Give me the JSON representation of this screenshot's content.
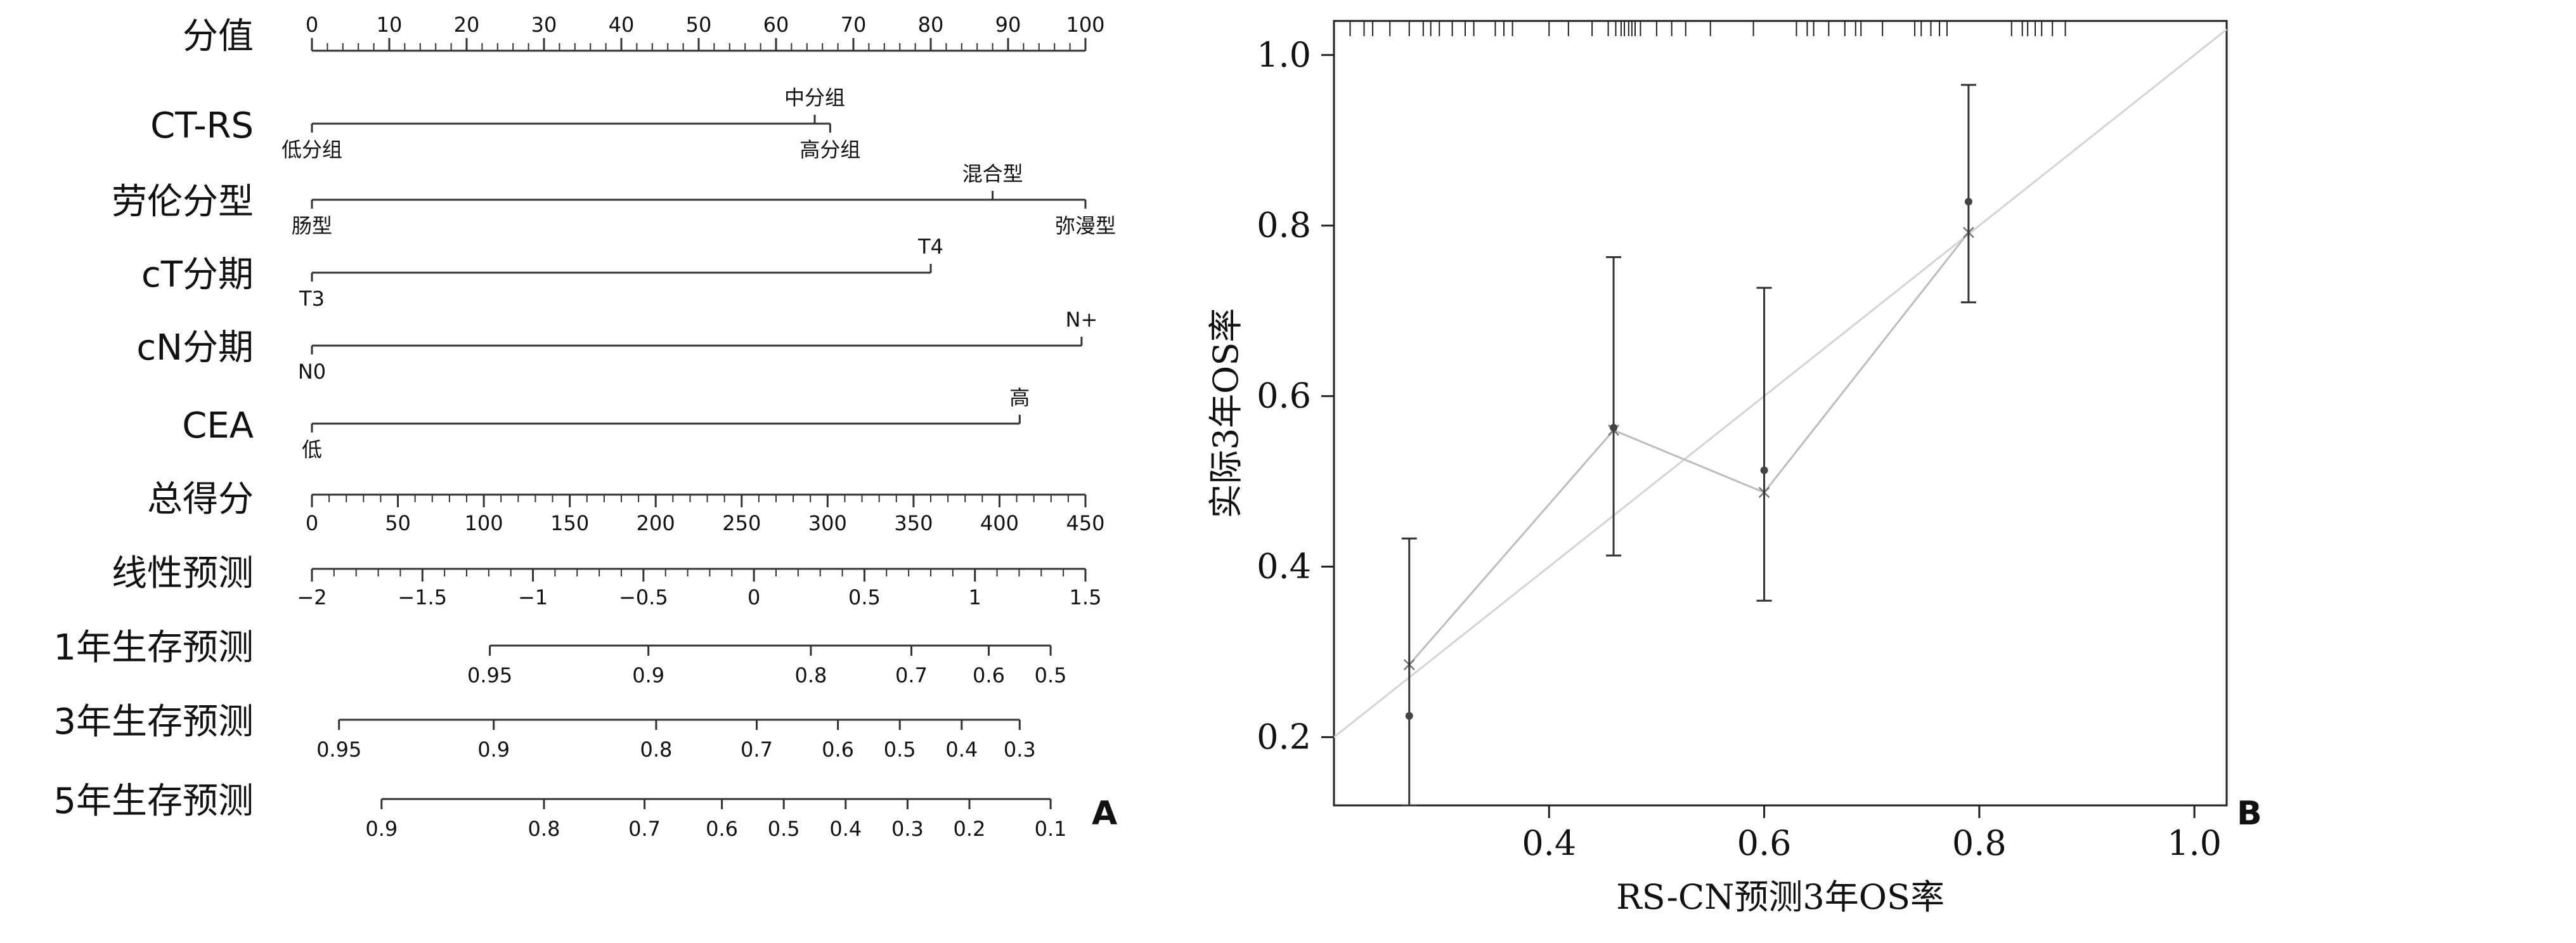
{
  "chart_data": [
    {
      "type": "nomogram",
      "panel_label": "A",
      "rows": [
        {
          "key": "points",
          "name": "分值",
          "kind": "axis",
          "ticks": [
            {
              "v": 0,
              "t": "0"
            },
            {
              "v": 10,
              "t": "10"
            },
            {
              "v": 20,
              "t": "20"
            },
            {
              "v": 30,
              "t": "30"
            },
            {
              "v": 40,
              "t": "40"
            },
            {
              "v": 50,
              "t": "50"
            },
            {
              "v": 60,
              "t": "60"
            },
            {
              "v": 70,
              "t": "70"
            },
            {
              "v": 80,
              "t": "80"
            },
            {
              "v": 90,
              "t": "90"
            },
            {
              "v": 100,
              "t": "100"
            }
          ],
          "minor_step": 2,
          "labels_above": true
        },
        {
          "key": "ctrs",
          "name": "CT-RS",
          "kind": "factor",
          "line_range": [
            0,
            67
          ],
          "levels": [
            {
              "label": "低分组",
              "points": 0,
              "pos": "below"
            },
            {
              "label": "中分组",
              "points": 65,
              "pos": "above"
            },
            {
              "label": "高分组",
              "points": 67,
              "pos": "below"
            }
          ]
        },
        {
          "key": "lauren",
          "name": "劳伦分型",
          "kind": "factor",
          "line_range": [
            0,
            100
          ],
          "levels": [
            {
              "label": "肠型",
              "points": 0,
              "pos": "below"
            },
            {
              "label": "混合型",
              "points": 88,
              "pos": "above"
            },
            {
              "label": "弥漫型",
              "points": 100,
              "pos": "below"
            }
          ]
        },
        {
          "key": "ct",
          "name": "cT分期",
          "kind": "factor",
          "line_range": [
            0,
            80
          ],
          "levels": [
            {
              "label": "T3",
              "points": 0,
              "pos": "below"
            },
            {
              "label": "T4",
              "points": 80,
              "pos": "above"
            }
          ]
        },
        {
          "key": "cn",
          "name": "cN分期",
          "kind": "factor",
          "line_range": [
            0,
            99.5
          ],
          "levels": [
            {
              "label": "N0",
              "points": 0,
              "pos": "below"
            },
            {
              "label": "N+",
              "points": 99.5,
              "pos": "above"
            }
          ]
        },
        {
          "key": "cea",
          "name": "CEA",
          "kind": "factor",
          "line_range": [
            0,
            91.5
          ],
          "levels": [
            {
              "label": "低",
              "points": 0,
              "pos": "below"
            },
            {
              "label": "高",
              "points": 91.5,
              "pos": "above"
            }
          ]
        },
        {
          "key": "total",
          "name": "总得分",
          "kind": "axis",
          "ticks": [
            {
              "v": 0,
              "t": "0"
            },
            {
              "v": 50,
              "t": "50"
            },
            {
              "v": 100,
              "t": "100"
            },
            {
              "v": 150,
              "t": "150"
            },
            {
              "v": 200,
              "t": "200"
            },
            {
              "v": 250,
              "t": "250"
            },
            {
              "v": 300,
              "t": "300"
            },
            {
              "v": 350,
              "t": "350"
            },
            {
              "v": 400,
              "t": "400"
            },
            {
              "v": 450,
              "t": "450"
            }
          ],
          "scale_max": 450,
          "minor_step": 10,
          "labels_above": false
        },
        {
          "key": "lp",
          "name": "线性预测",
          "kind": "axis",
          "ticks": [
            {
              "v": -2,
              "t": "−2"
            },
            {
              "v": -1.5,
              "t": "−1.5"
            },
            {
              "v": -1,
              "t": "−1"
            },
            {
              "v": -0.5,
              "t": "−0.5"
            },
            {
              "v": 0,
              "t": "0"
            },
            {
              "v": 0.5,
              "t": "0.5"
            },
            {
              "v": 1,
              "t": "1"
            },
            {
              "v": 1.5,
              "t": "1.5"
            }
          ],
          "scale_min": -2,
          "scale_max": 1.5,
          "minor_step": 0.1,
          "labels_above": false
        },
        {
          "key": "s1",
          "name": "1年生存预测",
          "kind": "prob",
          "ticks": [
            {
              "p": 23,
              "t": "0.95"
            },
            {
              "p": 43.5,
              "t": "0.9"
            },
            {
              "p": 64.5,
              "t": "0.8"
            },
            {
              "p": 77.5,
              "t": "0.7"
            },
            {
              "p": 87.5,
              "t": "0.6"
            },
            {
              "p": 95.5,
              "t": "0.5"
            }
          ]
        },
        {
          "key": "s3",
          "name": "3年生存预测",
          "kind": "prob",
          "ticks": [
            {
              "p": 3.5,
              "t": "0.95"
            },
            {
              "p": 23.5,
              "t": "0.9"
            },
            {
              "p": 44.5,
              "t": "0.8"
            },
            {
              "p": 57.5,
              "t": "0.7"
            },
            {
              "p": 68,
              "t": "0.6"
            },
            {
              "p": 76,
              "t": "0.5"
            },
            {
              "p": 84,
              "t": "0.4"
            },
            {
              "p": 91.5,
              "t": "0.3"
            }
          ]
        },
        {
          "key": "s5",
          "name": "5年生存预测",
          "kind": "prob",
          "ticks": [
            {
              "p": 9,
              "t": "0.9"
            },
            {
              "p": 30,
              "t": "0.8"
            },
            {
              "p": 43,
              "t": "0.7"
            },
            {
              "p": 53,
              "t": "0.6"
            },
            {
              "p": 61,
              "t": "0.5"
            },
            {
              "p": 69,
              "t": "0.4"
            },
            {
              "p": 77,
              "t": "0.3"
            },
            {
              "p": 85,
              "t": "0.2"
            },
            {
              "p": 95.5,
              "t": "0.1"
            }
          ]
        }
      ]
    },
    {
      "type": "line",
      "panel_label": "B",
      "title": "",
      "xlabel": "RS-CN预测3年OS率",
      "ylabel": "实际3年OS率",
      "xlim": [
        0.2,
        1.03
      ],
      "ylim": [
        0.12,
        1.04
      ],
      "xticks": [
        {
          "v": 0.4,
          "t": "0.4"
        },
        {
          "v": 0.6,
          "t": "0.6"
        },
        {
          "v": 0.8,
          "t": "0.8"
        },
        {
          "v": 1.0,
          "t": "1.0"
        }
      ],
      "yticks": [
        {
          "v": 0.2,
          "t": "0.2"
        },
        {
          "v": 0.4,
          "t": "0.4"
        },
        {
          "v": 0.6,
          "t": "0.6"
        },
        {
          "v": 0.8,
          "t": "0.8"
        },
        {
          "v": 1.0,
          "t": "1.0"
        }
      ],
      "ideal_line": [
        [
          0.2,
          0.2
        ],
        [
          1.03,
          1.03
        ]
      ],
      "calibration": {
        "x": [
          0.27,
          0.46,
          0.6,
          0.79
        ],
        "y": [
          0.225,
          0.563,
          0.513,
          0.828
        ],
        "lower": [
          0.12,
          0.413,
          0.36,
          0.71
        ],
        "upper": [
          0.433,
          0.763,
          0.727,
          0.965
        ]
      },
      "bias_corrected": {
        "x": [
          0.27,
          0.46,
          0.6,
          0.79
        ],
        "y": [
          0.285,
          0.56,
          0.487,
          0.792
        ]
      },
      "rug": [
        0.215,
        0.228,
        0.236,
        0.252,
        0.27,
        0.283,
        0.29,
        0.298,
        0.31,
        0.322,
        0.33,
        0.35,
        0.358,
        0.366,
        0.4,
        0.418,
        0.44,
        0.455,
        0.462,
        0.467,
        0.47,
        0.474,
        0.477,
        0.48,
        0.485,
        0.5,
        0.514,
        0.527,
        0.55,
        0.59,
        0.63,
        0.64,
        0.646,
        0.66,
        0.675,
        0.685,
        0.69,
        0.71,
        0.74,
        0.746,
        0.755,
        0.763,
        0.77,
        0.83,
        0.84,
        0.845,
        0.852,
        0.858,
        0.868,
        0.88
      ],
      "grid": false
    }
  ]
}
